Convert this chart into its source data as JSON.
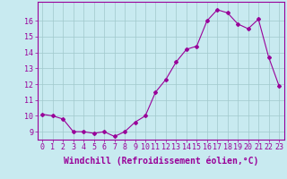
{
  "x": [
    0,
    1,
    2,
    3,
    4,
    5,
    6,
    7,
    8,
    9,
    10,
    11,
    12,
    13,
    14,
    15,
    16,
    17,
    18,
    19,
    20,
    21,
    22,
    23
  ],
  "y": [
    10.1,
    10.0,
    9.8,
    9.0,
    9.0,
    8.9,
    9.0,
    8.7,
    9.0,
    9.6,
    10.0,
    11.5,
    12.3,
    13.4,
    14.2,
    14.4,
    16.0,
    16.7,
    16.5,
    15.8,
    15.5,
    16.1,
    13.7,
    11.9
  ],
  "line_color": "#990099",
  "marker": "D",
  "marker_size": 2,
  "bg_color": "#c8eaf0",
  "grid_color": "#a0c8cc",
  "xlabel": "Windchill (Refroidissement éolien,°C)",
  "xlabel_fontsize": 7,
  "tick_fontsize": 6,
  "ylim": [
    8.5,
    17.2
  ],
  "xlim": [
    -0.5,
    23.5
  ],
  "yticks": [
    9,
    10,
    11,
    12,
    13,
    14,
    15,
    16
  ],
  "xticks": [
    0,
    1,
    2,
    3,
    4,
    5,
    6,
    7,
    8,
    9,
    10,
    11,
    12,
    13,
    14,
    15,
    16,
    17,
    18,
    19,
    20,
    21,
    22,
    23
  ]
}
